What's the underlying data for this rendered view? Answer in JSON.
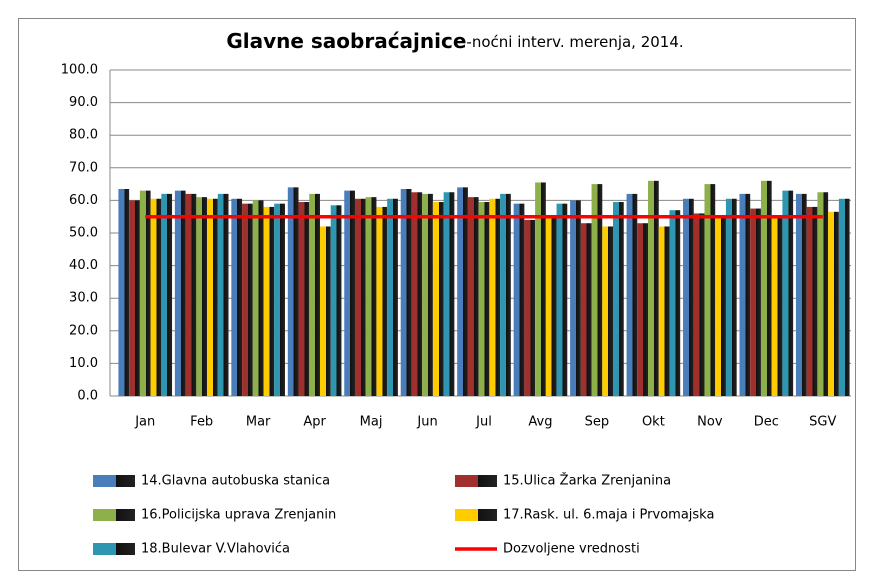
{
  "chart_data": {
    "type": "bar",
    "title": "Glavne saobraćajnice",
    "subtitle": "-noćni interv. merenja, 2014.",
    "categories": [
      "Jan",
      "Feb",
      "Mar",
      "Apr",
      "Maj",
      "Jun",
      "Jul",
      "Avg",
      "Sep",
      "Okt",
      "Nov",
      "Dec",
      "SGV"
    ],
    "series": [
      {
        "name": "14.Glavna autobuska stanica",
        "color": "#4a7ebb",
        "values": [
          63.5,
          63,
          60.5,
          64,
          63,
          63.5,
          64,
          59,
          60,
          62,
          60.5,
          62,
          62
        ]
      },
      {
        "name": "15.Ulica Žarka Zrenjanina",
        "color": "#a0302e",
        "values": [
          60,
          62,
          59,
          59.5,
          60.5,
          62.5,
          61,
          54,
          53,
          53,
          56,
          57.5,
          58
        ]
      },
      {
        "name": "16.Policijska uprava Zrenjanin",
        "color": "#8db04a",
        "values": [
          63,
          61,
          60,
          62,
          61,
          62,
          59.5,
          65.5,
          65,
          66,
          65,
          66,
          62.5
        ]
      },
      {
        "name": "17.Rask. ul. 6.maja i Prvomajska",
        "color": "#ffcc00",
        "values": [
          60.5,
          60.5,
          58,
          52,
          58,
          59.5,
          60.5,
          55,
          52,
          52,
          55,
          55,
          56.5
        ]
      },
      {
        "name": "18.Bulevar V.Vlahovića",
        "color": "#2e96b0",
        "values": [
          62,
          62,
          59,
          58.5,
          60.5,
          62.5,
          62,
          59,
          59.5,
          57,
          60.5,
          63,
          60.5
        ]
      },
      {
        "name": "Dozvoljene vrednosti",
        "color": "#ff0000",
        "type": "line",
        "values": [
          55,
          55,
          55,
          55,
          55,
          55,
          55,
          55,
          55,
          55,
          55,
          55,
          55
        ]
      }
    ],
    "ylim": [
      0,
      100
    ],
    "yticks": [
      {
        "value": 0,
        "label": "0.0"
      },
      {
        "value": 10,
        "label": "10.0"
      },
      {
        "value": 20,
        "label": "20.0"
      },
      {
        "value": 30,
        "label": "30.0"
      },
      {
        "value": 40,
        "label": "40.0"
      },
      {
        "value": 50,
        "label": "50.0"
      },
      {
        "value": 60,
        "label": "60.0"
      },
      {
        "value": 70,
        "label": "70.0"
      },
      {
        "value": 80,
        "label": "80.0"
      },
      {
        "value": 90,
        "label": "90.0"
      },
      {
        "value": 100,
        "label": "100.0"
      }
    ],
    "grid": true
  }
}
